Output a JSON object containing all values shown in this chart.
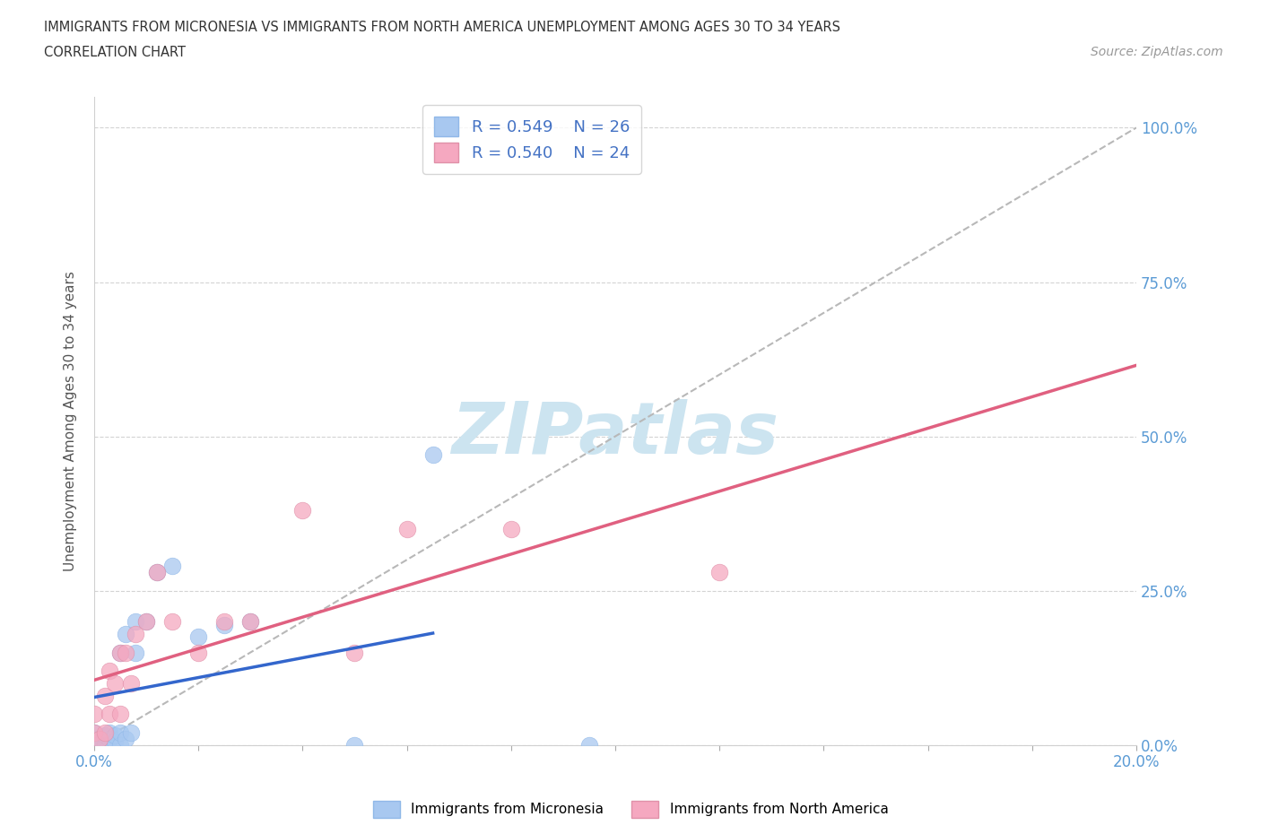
{
  "title_line1": "IMMIGRANTS FROM MICRONESIA VS IMMIGRANTS FROM NORTH AMERICA UNEMPLOYMENT AMONG AGES 30 TO 34 YEARS",
  "title_line2": "CORRELATION CHART",
  "source_text": "Source: ZipAtlas.com",
  "ylabel": "Unemployment Among Ages 30 to 34 years",
  "xlim": [
    0.0,
    0.2
  ],
  "ylim": [
    0.0,
    1.05
  ],
  "yticks": [
    0.0,
    0.25,
    0.5,
    0.75,
    1.0
  ],
  "ytick_labels": [
    "0.0%",
    "25.0%",
    "50.0%",
    "75.0%",
    "100.0%"
  ],
  "micronesia_R": 0.549,
  "micronesia_N": 26,
  "north_america_R": 0.54,
  "north_america_N": 24,
  "micronesia_color": "#a8c8f0",
  "north_america_color": "#f5a8c0",
  "micronesia_line_color": "#3366cc",
  "north_america_line_color": "#e06080",
  "watermark_color": "#cce4f0",
  "legend_text_color": "#4472c4",
  "background_color": "#ffffff",
  "micronesia_x": [
    0.0,
    0.0,
    0.0,
    0.002,
    0.002,
    0.003,
    0.003,
    0.004,
    0.004,
    0.005,
    0.005,
    0.005,
    0.006,
    0.006,
    0.007,
    0.008,
    0.008,
    0.01,
    0.012,
    0.015,
    0.02,
    0.025,
    0.03,
    0.05,
    0.065,
    0.095
  ],
  "micronesia_y": [
    0.0,
    0.01,
    0.02,
    0.0,
    0.015,
    0.01,
    0.02,
    0.005,
    0.015,
    0.0,
    0.02,
    0.15,
    0.01,
    0.18,
    0.02,
    0.15,
    0.2,
    0.2,
    0.28,
    0.29,
    0.175,
    0.195,
    0.2,
    0.0,
    0.47,
    0.0
  ],
  "north_america_x": [
    0.0,
    0.0,
    0.001,
    0.002,
    0.002,
    0.003,
    0.003,
    0.004,
    0.005,
    0.005,
    0.006,
    0.007,
    0.008,
    0.01,
    0.012,
    0.015,
    0.02,
    0.025,
    0.03,
    0.04,
    0.05,
    0.06,
    0.08,
    0.12
  ],
  "north_america_y": [
    0.02,
    0.05,
    0.01,
    0.02,
    0.08,
    0.05,
    0.12,
    0.1,
    0.05,
    0.15,
    0.15,
    0.1,
    0.18,
    0.2,
    0.28,
    0.2,
    0.15,
    0.2,
    0.2,
    0.38,
    0.15,
    0.35,
    0.35,
    0.28
  ],
  "ref_line_x": [
    0.0,
    0.2
  ],
  "ref_line_y": [
    0.0,
    1.0
  ]
}
